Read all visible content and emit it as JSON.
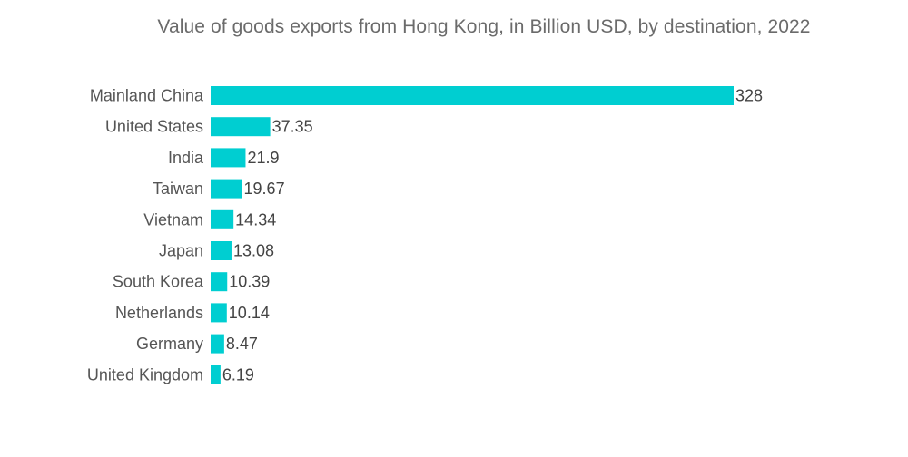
{
  "chart_data": {
    "type": "bar",
    "orientation": "horizontal",
    "title": "Value of goods exports from Hong Kong, in Billion USD, by destination, 2022",
    "categories": [
      "Mainland China",
      "United States",
      "India",
      "Taiwan",
      "Vietnam",
      "Japan",
      "South Korea",
      "Netherlands",
      "Germany",
      "United Kingdom"
    ],
    "values": [
      328,
      37.35,
      21.9,
      19.67,
      14.34,
      13.08,
      10.39,
      10.14,
      8.47,
      6.19
    ],
    "value_labels": [
      "328",
      "37.35",
      "21.9",
      "19.67",
      "14.34",
      "13.08",
      "10.39",
      "10.14",
      "8.47",
      "6.19"
    ],
    "xlabel": "",
    "ylabel": "",
    "xlim": [
      0,
      328
    ],
    "grid": false,
    "legend": "none",
    "bar_color": "#00ced1"
  }
}
